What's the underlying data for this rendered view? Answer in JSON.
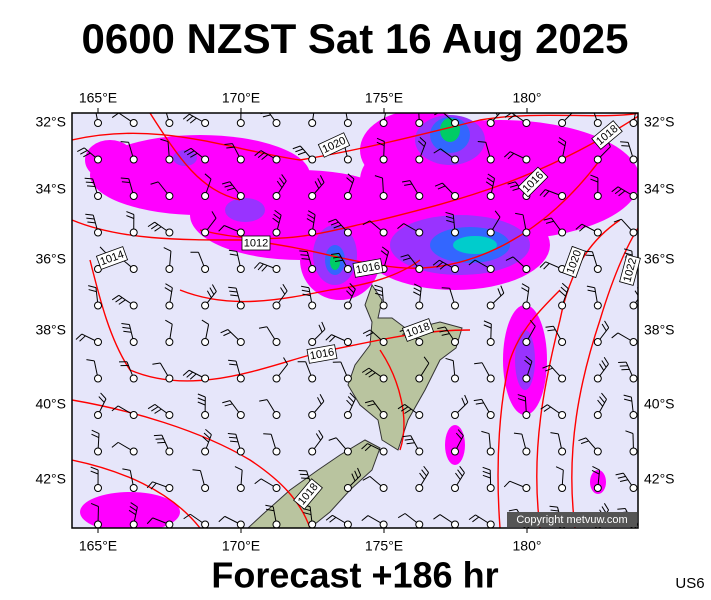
{
  "header": {
    "title": "0600 NZST Sat 16 Aug 2025"
  },
  "map": {
    "longitude_labels": [
      "165°E",
      "170°E",
      "175°E",
      "180°"
    ],
    "latitude_labels": [
      "32°S",
      "34°S",
      "36°S",
      "38°S",
      "40°S",
      "42°S"
    ],
    "isobar_labels": [
      "1020",
      "1018",
      "1016",
      "1012",
      "1014",
      "1016",
      "1020",
      "1022",
      "1018",
      "1016",
      "1018"
    ],
    "copyright": "Copyright metvuw.com"
  },
  "footer": {
    "forecast": "Forecast +186 hr",
    "code": "US6"
  }
}
